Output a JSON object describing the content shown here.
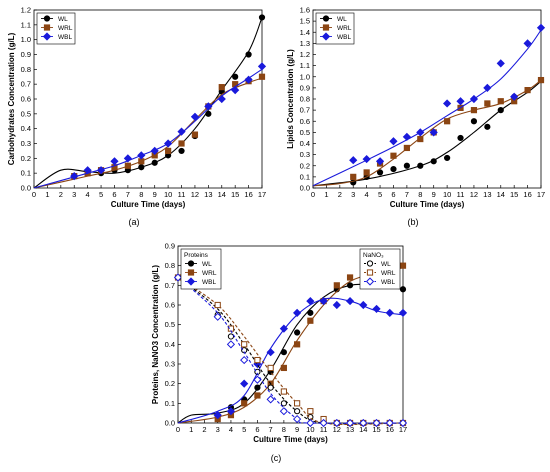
{
  "chart_data": [
    {
      "id": "a",
      "type": "scatter",
      "panel_label": "(a)",
      "title": "",
      "xlabel": "Culture Time (days)",
      "ylabel": "Carbohydrates Concentration (g/L)",
      "xlim": [
        0,
        17
      ],
      "ylim": [
        0,
        1.2
      ],
      "x_ticks": [
        0,
        1,
        2,
        3,
        4,
        5,
        6,
        7,
        8,
        9,
        10,
        11,
        12,
        13,
        14,
        15,
        16,
        17
      ],
      "y_ticks": [
        0.0,
        0.1,
        0.2,
        0.3,
        0.4,
        0.5,
        0.6,
        0.7,
        0.8,
        0.9,
        1.0,
        1.1,
        1.2
      ],
      "legend": {
        "position": "top-left",
        "title": ""
      },
      "series": [
        {
          "name": "WL",
          "marker": "circle",
          "color": "#000000",
          "fit_color": "#000000",
          "x": [
            3,
            4,
            5,
            6,
            7,
            8,
            9,
            10,
            11,
            12,
            13,
            14,
            15,
            16,
            17
          ],
          "values": [
            0.08,
            0.1,
            0.1,
            0.12,
            0.12,
            0.14,
            0.17,
            0.22,
            0.25,
            0.35,
            0.5,
            0.65,
            0.75,
            0.9,
            1.15
          ],
          "fit": [
            [
              0,
              0
            ],
            [
              2,
              0.12
            ],
            [
              4,
              0.11
            ],
            [
              6,
              0.1
            ],
            [
              8,
              0.14
            ],
            [
              10,
              0.22
            ],
            [
              12,
              0.4
            ],
            [
              14,
              0.66
            ],
            [
              16,
              0.92
            ],
            [
              17,
              1.15
            ]
          ]
        },
        {
          "name": "WRL",
          "marker": "square",
          "color": "#8b4513",
          "fit_color": "#8b4513",
          "x": [
            3,
            4,
            5,
            6,
            7,
            8,
            9,
            10,
            11,
            12,
            13,
            14,
            15,
            16,
            17
          ],
          "values": [
            0.08,
            0.1,
            0.12,
            0.14,
            0.15,
            0.18,
            0.22,
            0.25,
            0.3,
            0.36,
            0.55,
            0.68,
            0.7,
            0.72,
            0.75
          ],
          "fit": [
            [
              0,
              0
            ],
            [
              4,
              0.08
            ],
            [
              6,
              0.12
            ],
            [
              8,
              0.18
            ],
            [
              10,
              0.28
            ],
            [
              12,
              0.46
            ],
            [
              14,
              0.63
            ],
            [
              16,
              0.71
            ],
            [
              17,
              0.74
            ]
          ]
        },
        {
          "name": "WBL",
          "marker": "diamond",
          "color": "#1a1adb",
          "fit_color": "#1a1adb",
          "x": [
            3,
            4,
            5,
            6,
            7,
            8,
            9,
            10,
            11,
            12,
            13,
            14,
            15,
            16,
            17
          ],
          "values": [
            0.08,
            0.12,
            0.12,
            0.18,
            0.2,
            0.22,
            0.25,
            0.3,
            0.38,
            0.48,
            0.55,
            0.6,
            0.66,
            0.73,
            0.82
          ],
          "fit": [
            [
              0,
              0
            ],
            [
              4,
              0.1
            ],
            [
              6,
              0.15
            ],
            [
              8,
              0.22
            ],
            [
              10,
              0.3
            ],
            [
              12,
              0.45
            ],
            [
              14,
              0.62
            ],
            [
              16,
              0.74
            ],
            [
              17,
              0.8
            ]
          ]
        }
      ]
    },
    {
      "id": "b",
      "type": "scatter",
      "panel_label": "(b)",
      "title": "",
      "xlabel": "Culture Time (days)",
      "ylabel": "Lipids Concentration (g/L)",
      "xlim": [
        0,
        17
      ],
      "ylim": [
        0,
        1.6
      ],
      "x_ticks": [
        0,
        1,
        2,
        3,
        4,
        5,
        6,
        7,
        8,
        9,
        10,
        11,
        12,
        13,
        14,
        15,
        16,
        17
      ],
      "y_ticks": [
        0.0,
        0.1,
        0.2,
        0.3,
        0.4,
        0.5,
        0.6,
        0.7,
        0.8,
        0.9,
        1.0,
        1.1,
        1.2,
        1.3,
        1.4,
        1.5,
        1.6
      ],
      "legend": {
        "position": "top-left",
        "title": ""
      },
      "series": [
        {
          "name": "WL",
          "marker": "circle",
          "color": "#000000",
          "fit_color": "#000000",
          "x": [
            3,
            4,
            5,
            6,
            7,
            8,
            9,
            10,
            11,
            12,
            13,
            14,
            15,
            16,
            17
          ],
          "values": [
            0.05,
            0.1,
            0.14,
            0.17,
            0.2,
            0.2,
            0.24,
            0.27,
            0.45,
            0.6,
            0.55,
            0.7,
            0.82,
            0.88,
            0.97
          ],
          "fit": [
            [
              0,
              0.02
            ],
            [
              4,
              0.08
            ],
            [
              8,
              0.2
            ],
            [
              10,
              0.32
            ],
            [
              12,
              0.5
            ],
            [
              14,
              0.7
            ],
            [
              16,
              0.86
            ],
            [
              17,
              0.96
            ]
          ]
        },
        {
          "name": "WRL",
          "marker": "square",
          "color": "#8b4513",
          "fit_color": "#8b4513",
          "x": [
            3,
            4,
            5,
            6,
            7,
            8,
            9,
            10,
            11,
            12,
            13,
            14,
            15,
            16,
            17
          ],
          "values": [
            0.1,
            0.14,
            0.22,
            0.29,
            0.36,
            0.44,
            0.5,
            0.6,
            0.72,
            0.7,
            0.76,
            0.78,
            0.78,
            0.88,
            0.97
          ],
          "fit": [
            [
              0,
              0.02
            ],
            [
              2,
              0.04
            ],
            [
              4,
              0.1
            ],
            [
              6,
              0.26
            ],
            [
              8,
              0.45
            ],
            [
              10,
              0.62
            ],
            [
              12,
              0.7
            ],
            [
              14,
              0.76
            ],
            [
              16,
              0.88
            ],
            [
              17,
              0.97
            ]
          ]
        },
        {
          "name": "WBL",
          "marker": "diamond",
          "color": "#1a1adb",
          "fit_color": "#1a1adb",
          "x": [
            3,
            4,
            5,
            6,
            7,
            8,
            9,
            10,
            11,
            12,
            13,
            14,
            15,
            16,
            17
          ],
          "values": [
            0.25,
            0.26,
            0.24,
            0.42,
            0.46,
            0.5,
            0.5,
            0.76,
            0.78,
            0.8,
            0.9,
            1.12,
            0.82,
            1.3,
            1.44
          ],
          "fit": [
            [
              0,
              0.02
            ],
            [
              4,
              0.25
            ],
            [
              6,
              0.37
            ],
            [
              8,
              0.5
            ],
            [
              10,
              0.65
            ],
            [
              12,
              0.8
            ],
            [
              14,
              0.98
            ],
            [
              16,
              1.25
            ],
            [
              17,
              1.42
            ]
          ]
        }
      ]
    },
    {
      "id": "c",
      "type": "scatter",
      "panel_label": "(c)",
      "title": "",
      "xlabel": "Culture Time (days)",
      "ylabel": "Proteins, NaNO3 Concentration (g/L)",
      "xlim": [
        0,
        17
      ],
      "ylim": [
        0,
        0.9
      ],
      "x_ticks": [
        0,
        1,
        2,
        3,
        4,
        5,
        6,
        7,
        8,
        9,
        10,
        11,
        12,
        13,
        14,
        15,
        16,
        17
      ],
      "y_ticks": [
        0.0,
        0.1,
        0.2,
        0.3,
        0.4,
        0.5,
        0.6,
        0.7,
        0.8,
        0.9
      ],
      "legend_left": {
        "title": "Proteins",
        "position": "top-left"
      },
      "legend_right": {
        "title": "NaNO₃",
        "position": "top-right"
      },
      "series": [
        {
          "name": "WL",
          "group": "Proteins",
          "marker": "circle",
          "color": "#000000",
          "fit_color": "#000000",
          "x": [
            3,
            4,
            5,
            6,
            7,
            8,
            9,
            10,
            11,
            12,
            13,
            14,
            15,
            16,
            17
          ],
          "values": [
            0.04,
            0.08,
            0.12,
            0.18,
            0.26,
            0.36,
            0.46,
            0.56,
            0.62,
            0.68,
            0.7,
            0.7,
            0.7,
            0.7,
            0.68
          ],
          "fit": [
            [
              0,
              0
            ],
            [
              1,
              0.04
            ],
            [
              3,
              0.05
            ],
            [
              5,
              0.1
            ],
            [
              7,
              0.27
            ],
            [
              9,
              0.5
            ],
            [
              11,
              0.64
            ],
            [
              13,
              0.7
            ],
            [
              15,
              0.7
            ],
            [
              17,
              0.68
            ]
          ]
        },
        {
          "name": "WRL",
          "group": "Proteins",
          "marker": "square",
          "color": "#8b4513",
          "fit_color": "#8b4513",
          "x": [
            3,
            4,
            5,
            6,
            7,
            8,
            9,
            10,
            11,
            12,
            13,
            14,
            15,
            16,
            17
          ],
          "values": [
            0.02,
            0.04,
            0.1,
            0.14,
            0.2,
            0.28,
            0.4,
            0.52,
            0.62,
            0.7,
            0.74,
            0.76,
            0.77,
            0.77,
            0.8
          ],
          "fit": [
            [
              0,
              0
            ],
            [
              3,
              0.03
            ],
            [
              5,
              0.08
            ],
            [
              7,
              0.2
            ],
            [
              9,
              0.42
            ],
            [
              11,
              0.6
            ],
            [
              13,
              0.72
            ],
            [
              15,
              0.76
            ],
            [
              17,
              0.79
            ]
          ]
        },
        {
          "name": "WBL",
          "group": "Proteins",
          "marker": "diamond",
          "color": "#1a1adb",
          "fit_color": "#1a1adb",
          "x": [
            3,
            4,
            5,
            6,
            7,
            8,
            9,
            10,
            11,
            12,
            13,
            14,
            15,
            16,
            17
          ],
          "values": [
            0.04,
            0.06,
            0.2,
            0.3,
            0.36,
            0.48,
            0.56,
            0.62,
            0.62,
            0.6,
            0.62,
            0.6,
            0.58,
            0.56,
            0.56
          ],
          "fit": [
            [
              0,
              0
            ],
            [
              3,
              0.06
            ],
            [
              5,
              0.14
            ],
            [
              7,
              0.38
            ],
            [
              9,
              0.55
            ],
            [
              11,
              0.63
            ],
            [
              13,
              0.62
            ],
            [
              15,
              0.57
            ],
            [
              17,
              0.55
            ]
          ]
        },
        {
          "name": "WL",
          "group": "NaNO₃",
          "marker": "circle-open",
          "color": "#000000",
          "fit_color": "#000000",
          "dashed": true,
          "x": [
            0,
            3,
            4,
            5,
            6,
            7,
            8,
            9,
            10,
            11,
            12,
            13,
            14,
            15,
            16,
            17
          ],
          "values": [
            0.74,
            0.55,
            0.44,
            0.37,
            0.26,
            0.18,
            0.1,
            0.06,
            0.03,
            0.01,
            0,
            0,
            0,
            0,
            0,
            0
          ],
          "fit": [
            [
              0,
              0.74
            ],
            [
              3,
              0.58
            ],
            [
              5,
              0.4
            ],
            [
              7,
              0.2
            ],
            [
              9,
              0.06
            ],
            [
              11,
              0
            ],
            [
              17,
              0
            ]
          ]
        },
        {
          "name": "WRL",
          "group": "NaNO₃",
          "marker": "square-open",
          "color": "#8b4513",
          "fit_color": "#8b4513",
          "dashed": true,
          "x": [
            0,
            3,
            4,
            5,
            6,
            7,
            8,
            9,
            10,
            11,
            12,
            13,
            14,
            15,
            16,
            17
          ],
          "values": [
            0.74,
            0.6,
            0.48,
            0.4,
            0.32,
            0.28,
            0.16,
            0.1,
            0.06,
            0.02,
            0,
            0,
            0,
            0,
            0,
            0
          ],
          "fit": [
            [
              0,
              0.74
            ],
            [
              3,
              0.6
            ],
            [
              5,
              0.44
            ],
            [
              7,
              0.26
            ],
            [
              9,
              0.1
            ],
            [
              11,
              0
            ],
            [
              17,
              0
            ]
          ]
        },
        {
          "name": "WBL",
          "group": "NaNO₃",
          "marker": "diamond-open",
          "color": "#1a1adb",
          "fit_color": "#1a1adb",
          "dashed": true,
          "x": [
            0,
            3,
            4,
            5,
            6,
            7,
            8,
            9,
            10,
            11,
            12,
            13,
            14,
            15,
            16,
            17
          ],
          "values": [
            0.74,
            0.54,
            0.4,
            0.32,
            0.22,
            0.12,
            0.06,
            0.02,
            0,
            0,
            0,
            0,
            0,
            0,
            0,
            0
          ],
          "fit": [
            [
              0,
              0.74
            ],
            [
              3,
              0.56
            ],
            [
              5,
              0.36
            ],
            [
              7,
              0.15
            ],
            [
              9,
              0.02
            ],
            [
              10,
              0
            ],
            [
              17,
              0
            ]
          ]
        }
      ]
    }
  ]
}
